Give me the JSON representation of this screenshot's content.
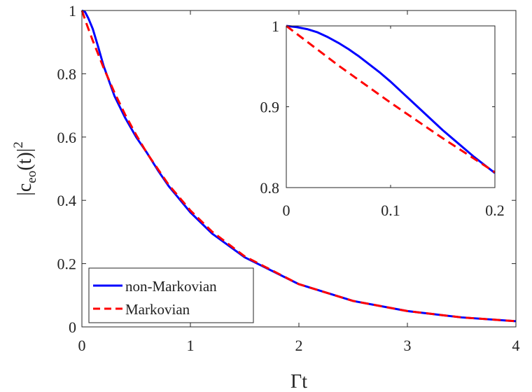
{
  "chart_data": [
    {
      "type": "line",
      "xlabel": "Γt",
      "ylabel_parts": {
        "base": "|c",
        "sub": "eo",
        "mid": "(t)|",
        "sup": "2"
      },
      "xlim": [
        0,
        4
      ],
      "ylim": [
        0,
        1
      ],
      "xticks": [
        "0",
        "1",
        "2",
        "3",
        "4"
      ],
      "yticks": [
        "0",
        "0.2",
        "0.4",
        "0.6",
        "0.8",
        "1"
      ],
      "grid": false,
      "legend_position": "bottom-left",
      "series": [
        {
          "name": "non-Markovian",
          "color": "#0000ff",
          "style": "solid",
          "x": [
            0,
            0.03,
            0.06,
            0.1,
            0.15,
            0.2,
            0.3,
            0.4,
            0.5,
            0.6,
            0.7,
            0.8,
            1.0,
            1.2,
            1.5,
            2.0,
            2.5,
            3.0,
            3.5,
            4.0
          ],
          "y": [
            1.0,
            0.995,
            0.975,
            0.942,
            0.885,
            0.825,
            0.73,
            0.66,
            0.6,
            0.55,
            0.495,
            0.445,
            0.362,
            0.295,
            0.22,
            0.135,
            0.082,
            0.05,
            0.03,
            0.018
          ]
        },
        {
          "name": "Markovian",
          "color": "#ff0000",
          "style": "dashed",
          "x": [
            0,
            0.05,
            0.1,
            0.2,
            0.3,
            0.4,
            0.5,
            0.6,
            0.8,
            1.0,
            1.2,
            1.5,
            2.0,
            2.5,
            3.0,
            3.5,
            4.0
          ],
          "y": [
            1.0,
            0.951,
            0.905,
            0.819,
            0.741,
            0.67,
            0.607,
            0.549,
            0.449,
            0.368,
            0.301,
            0.223,
            0.135,
            0.082,
            0.05,
            0.03,
            0.018
          ]
        }
      ]
    },
    {
      "type": "line",
      "role": "inset",
      "xlim": [
        0,
        0.2
      ],
      "ylim": [
        0.8,
        1
      ],
      "xticks": [
        "0",
        "0.1",
        "0.2"
      ],
      "yticks": [
        "0.8",
        "0.9",
        "1"
      ],
      "grid": false,
      "legend_position": "none",
      "series": [
        {
          "name": "non-Markovian",
          "color": "#0000ff",
          "style": "solid",
          "x": [
            0,
            0.01,
            0.02,
            0.03,
            0.04,
            0.05,
            0.06,
            0.07,
            0.08,
            0.09,
            0.1,
            0.11,
            0.12,
            0.13,
            0.14,
            0.15,
            0.16,
            0.17,
            0.18,
            0.19,
            0.2
          ],
          "y": [
            1.0,
            0.9985,
            0.996,
            0.992,
            0.986,
            0.979,
            0.971,
            0.962,
            0.952,
            0.942,
            0.931,
            0.919,
            0.907,
            0.895,
            0.883,
            0.871,
            0.86,
            0.849,
            0.838,
            0.828,
            0.818
          ]
        },
        {
          "name": "Markovian",
          "color": "#ff0000",
          "style": "dashed",
          "x": [
            0,
            0.05,
            0.1,
            0.15,
            0.2
          ],
          "y": [
            1.0,
            0.951,
            0.905,
            0.861,
            0.819
          ]
        }
      ]
    }
  ]
}
